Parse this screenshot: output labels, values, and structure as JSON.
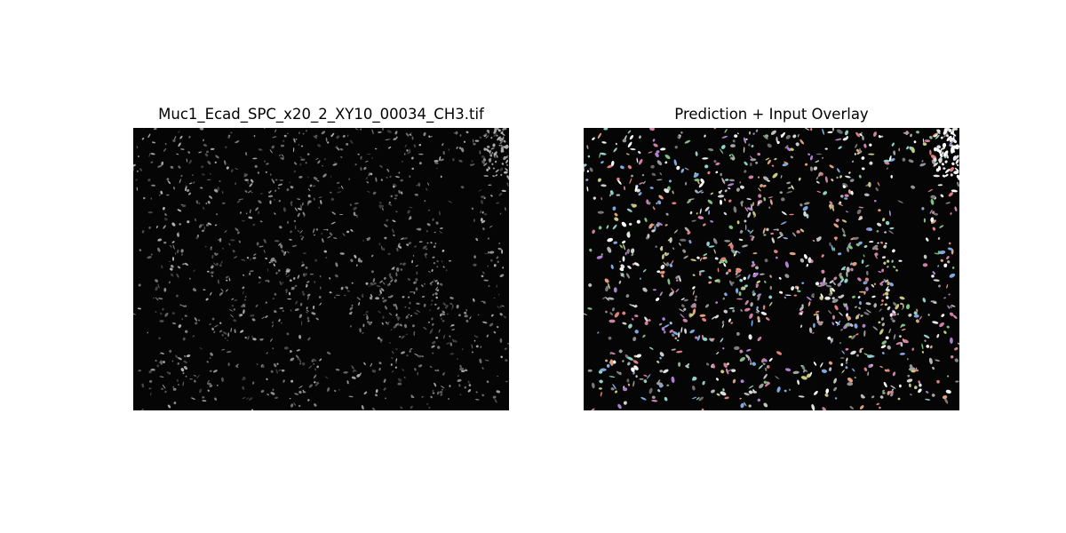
{
  "figure": {
    "panels": [
      {
        "title": "Muc1_Ecad_SPC_x20_2_XY10_00034_CH3.tif",
        "content": "grayscale fluorescence microscopy image of nuclei"
      },
      {
        "title": "Prediction + Input Overlay",
        "content": "grayscale nuclei with colored instance segmentation overlay"
      }
    ],
    "colors": {
      "background": "#ffffff",
      "image_background": "#050505",
      "overlay_palette": [
        "#7fbf7f",
        "#b07fd0",
        "#7fa8e0",
        "#e0a07f",
        "#d07fa8",
        "#8fd0c8",
        "#c8c87f",
        "#e07f7f"
      ]
    }
  }
}
